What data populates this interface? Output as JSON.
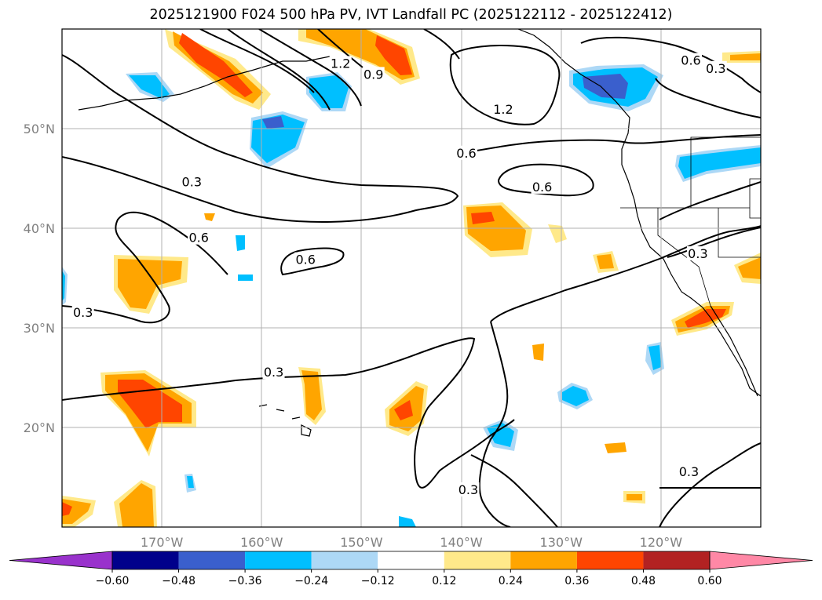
{
  "title": "2025121900 F024 500 hPa PV, IVT Landfall PC (2025122112 - 2025122412)",
  "chart_data": {
    "type": "map",
    "projection": "equirectangular",
    "lon_range": [
      -180,
      -110
    ],
    "lat_range": [
      10,
      60
    ],
    "x_ticks": [
      {
        "lon": -170,
        "label": "170°W"
      },
      {
        "lon": -160,
        "label": "160°W"
      },
      {
        "lon": -150,
        "label": "150°W"
      },
      {
        "lon": -140,
        "label": "140°W"
      },
      {
        "lon": -130,
        "label": "130°W"
      },
      {
        "lon": -120,
        "label": "120°W"
      }
    ],
    "y_ticks": [
      {
        "lat": 20,
        "label": "20°N"
      },
      {
        "lat": 30,
        "label": "30°N"
      },
      {
        "lat": 40,
        "label": "40°N"
      },
      {
        "lat": 50,
        "label": "50°N"
      }
    ],
    "grid": true,
    "fill_variable": "IVT Landfall PC",
    "contour_variable": "500 hPa PV",
    "contour_levels": [
      0.3,
      0.6,
      0.9,
      1.2
    ],
    "colorbar": {
      "orientation": "horizontal",
      "extend": "both",
      "bounds": [
        -0.6,
        -0.48,
        -0.36,
        -0.24,
        -0.12,
        0.12,
        0.24,
        0.36,
        0.48,
        0.6
      ],
      "tick_labels": [
        "−0.60",
        "−0.48",
        "−0.36",
        "−0.24",
        "−0.12",
        "0.12",
        "0.24",
        "0.36",
        "0.48",
        "0.60"
      ],
      "colors": [
        "#9932cc",
        "#00008b",
        "#3a5fcd",
        "#00bfff",
        "#add8f6",
        "#ffffff",
        "#ffe98a",
        "#ffa500",
        "#ff4500",
        "#b22222",
        "#ff88a6"
      ]
    },
    "contour_labels": [
      {
        "text": "0.3",
        "lon": -177.9,
        "lat": 31.5
      },
      {
        "text": "0.3",
        "lon": -167.0,
        "lat": 44.6
      },
      {
        "text": "0.3",
        "lon": -158.8,
        "lat": 25.5
      },
      {
        "text": "0.3",
        "lon": -139.3,
        "lat": 13.7
      },
      {
        "text": "0.3",
        "lon": -117.2,
        "lat": 15.5
      },
      {
        "text": "0.3",
        "lon": -116.3,
        "lat": 37.4
      },
      {
        "text": "0.3",
        "lon": -114.5,
        "lat": 56.0
      },
      {
        "text": "0.6",
        "lon": -166.3,
        "lat": 39.0
      },
      {
        "text": "0.6",
        "lon": -155.6,
        "lat": 36.8
      },
      {
        "text": "0.6",
        "lon": -139.5,
        "lat": 47.5
      },
      {
        "text": "0.6",
        "lon": -131.9,
        "lat": 44.1
      },
      {
        "text": "0.6",
        "lon": -117.0,
        "lat": 56.8
      },
      {
        "text": "0.9",
        "lon": -148.8,
        "lat": 55.4
      },
      {
        "text": "1.2",
        "lon": -152.1,
        "lat": 56.5
      },
      {
        "text": "1.2",
        "lon": -135.8,
        "lat": 51.9
      }
    ],
    "features": [
      {
        "value": 0.36,
        "label_lon": -147,
        "label_lat": 57
      },
      {
        "value": -0.36,
        "label_lon": -124,
        "label_lat": 54
      },
      {
        "value": -0.36,
        "label_lon": -160,
        "label_lat": 49
      },
      {
        "value": 0.36,
        "label_lon": -140,
        "label_lat": 39
      },
      {
        "value": 0.36,
        "label_lon": -172,
        "label_lat": 22
      },
      {
        "value": 0.36,
        "label_lon": -146,
        "label_lat": 21
      },
      {
        "value": 0.36,
        "label_lon": -116,
        "label_lat": 29
      },
      {
        "value": -0.24,
        "label_lon": -129,
        "label_lat": 23
      }
    ]
  }
}
